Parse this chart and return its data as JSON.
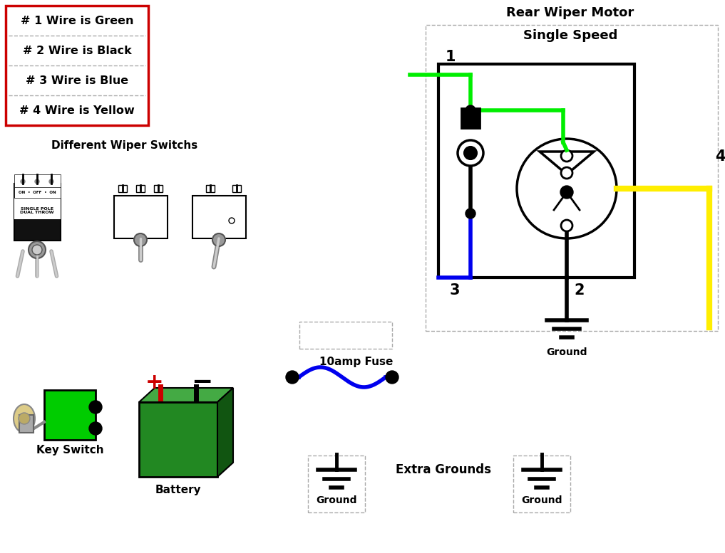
{
  "bg_color": "#ffffff",
  "title_line1": "Rear Wiper Motor",
  "title_line2": "Single Speed",
  "wire_labels": [
    "# 1 Wire is Green",
    "# 2 Wire is Black",
    "# 3 Wire is Blue",
    "# 4 Wire is Yellow"
  ],
  "section_label_switchs": "Different Wiper Switchs",
  "label_key_switch": "Key Switch",
  "label_battery": "Battery",
  "label_fuse": "10amp Fuse",
  "label_ground": "Ground",
  "label_extra_grounds": "Extra Grounds",
  "green_color": "#00ee00",
  "blue_color": "#0000ee",
  "yellow_color": "#ffee00",
  "red_color": "#cc0000",
  "black_color": "#000000",
  "gray_color": "#aaaaaa"
}
